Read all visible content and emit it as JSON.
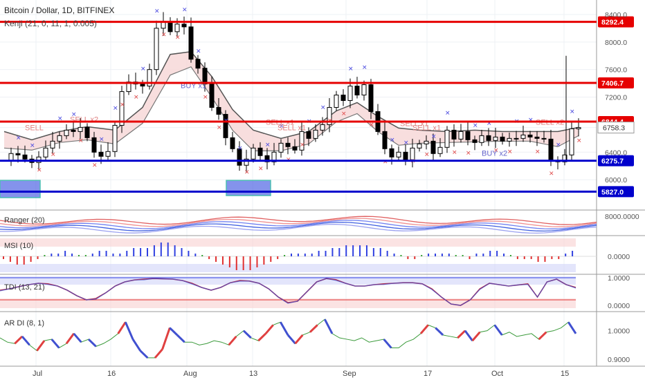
{
  "header": {
    "title": "Bitcoin / Dollar, 1D, BITFINEX",
    "indicator": "Kenji (21, 0, 11, 1, 0.005)"
  },
  "chart_data": {
    "type": "candlestick",
    "x_labels": [
      "Jul",
      "16",
      "Aug",
      "13",
      "Sep",
      "17",
      "Oct",
      "15"
    ],
    "price_axis": {
      "ticks": [
        8400.0,
        8000.0,
        7600.0,
        7200.0,
        6758.3,
        6400.0,
        6000.0
      ],
      "range": [
        5600,
        8550
      ]
    },
    "levels": [
      {
        "value": 8292.4,
        "label": "8292.4",
        "color": "#e60000"
      },
      {
        "value": 7406.7,
        "label": "7406.7",
        "color": "#e60000"
      },
      {
        "value": 6844.4,
        "label": "6844.4",
        "color": "#e60000"
      },
      {
        "value": 6275.7,
        "label": "6275.7",
        "color": "#0000cc"
      },
      {
        "value": 5827.0,
        "label": "5827.0",
        "color": "#0000cc"
      }
    ],
    "price_label": "6758.3",
    "close_points": [
      [
        0,
        6280
      ],
      [
        10,
        6380
      ],
      [
        20,
        6360
      ],
      [
        30,
        6300
      ],
      [
        40,
        6250
      ],
      [
        50,
        6330
      ],
      [
        60,
        6460
      ],
      [
        70,
        6560
      ],
      [
        80,
        6640
      ],
      [
        90,
        6720
      ],
      [
        100,
        6700
      ],
      [
        110,
        6760
      ],
      [
        120,
        6610
      ],
      [
        130,
        6400
      ],
      [
        140,
        6340
      ],
      [
        150,
        6410
      ],
      [
        160,
        6790
      ],
      [
        170,
        7280
      ],
      [
        180,
        7420
      ],
      [
        190,
        7390
      ],
      [
        200,
        7360
      ],
      [
        210,
        7600
      ],
      [
        220,
        8200
      ],
      [
        230,
        8300
      ],
      [
        240,
        8150
      ],
      [
        250,
        8260
      ],
      [
        260,
        8220
      ],
      [
        270,
        7750
      ],
      [
        280,
        7620
      ],
      [
        290,
        7390
      ],
      [
        300,
        7050
      ],
      [
        310,
        6950
      ],
      [
        320,
        6610
      ],
      [
        330,
        6450
      ],
      [
        340,
        6210
      ],
      [
        350,
        6300
      ],
      [
        360,
        6460
      ],
      [
        370,
        6350
      ],
      [
        380,
        6260
      ],
      [
        390,
        6400
      ],
      [
        400,
        6530
      ],
      [
        410,
        6480
      ],
      [
        420,
        6430
      ],
      [
        430,
        6700
      ],
      [
        440,
        6600
      ],
      [
        450,
        6720
      ],
      [
        460,
        6800
      ],
      [
        470,
        7050
      ],
      [
        480,
        7230
      ],
      [
        490,
        7150
      ],
      [
        500,
        7360
      ],
      [
        510,
        7230
      ],
      [
        520,
        7380
      ],
      [
        530,
        6990
      ],
      [
        540,
        6700
      ],
      [
        550,
        6450
      ],
      [
        560,
        6330
      ],
      [
        570,
        6400
      ],
      [
        580,
        6290
      ],
      [
        590,
        6460
      ],
      [
        600,
        6520
      ],
      [
        610,
        6560
      ],
      [
        620,
        6380
      ],
      [
        630,
        6470
      ],
      [
        640,
        6720
      ],
      [
        650,
        6590
      ],
      [
        660,
        6700
      ],
      [
        670,
        6580
      ],
      [
        680,
        6540
      ],
      [
        690,
        6640
      ],
      [
        700,
        6570
      ],
      [
        710,
        6620
      ],
      [
        720,
        6560
      ],
      [
        730,
        6600
      ],
      [
        740,
        6600
      ],
      [
        750,
        6650
      ],
      [
        760,
        6620
      ],
      [
        770,
        6600
      ],
      [
        780,
        6590
      ],
      [
        790,
        6280
      ],
      [
        800,
        6260
      ],
      [
        810,
        6360
      ],
      [
        820,
        6740
      ],
      [
        830,
        6758
      ]
    ],
    "spike": {
      "x": 818,
      "value": 7800
    },
    "band_upper": [
      [
        0,
        6700
      ],
      [
        40,
        6580
      ],
      [
        80,
        6700
      ],
      [
        120,
        6770
      ],
      [
        160,
        6720
      ],
      [
        200,
        7050
      ],
      [
        240,
        7820
      ],
      [
        270,
        7860
      ],
      [
        300,
        7500
      ],
      [
        330,
        7020
      ],
      [
        360,
        6720
      ],
      [
        400,
        6600
      ],
      [
        440,
        6700
      ],
      [
        480,
        7000
      ],
      [
        510,
        7120
      ],
      [
        540,
        6920
      ],
      [
        570,
        6750
      ],
      [
        600,
        6720
      ],
      [
        640,
        6700
      ],
      [
        680,
        6720
      ],
      [
        720,
        6700
      ],
      [
        760,
        6700
      ],
      [
        800,
        6700
      ],
      [
        830,
        6760
      ]
    ],
    "band_lower": [
      [
        0,
        6460
      ],
      [
        40,
        6430
      ],
      [
        80,
        6540
      ],
      [
        120,
        6580
      ],
      [
        160,
        6520
      ],
      [
        200,
        6820
      ],
      [
        240,
        7520
      ],
      [
        270,
        7640
      ],
      [
        300,
        7200
      ],
      [
        330,
        6720
      ],
      [
        360,
        6420
      ],
      [
        400,
        6420
      ],
      [
        440,
        6520
      ],
      [
        480,
        6840
      ],
      [
        510,
        6960
      ],
      [
        540,
        6700
      ],
      [
        570,
        6500
      ],
      [
        600,
        6530
      ],
      [
        640,
        6540
      ],
      [
        680,
        6550
      ],
      [
        720,
        6560
      ],
      [
        760,
        6560
      ],
      [
        800,
        6480
      ],
      [
        830,
        6640
      ]
    ],
    "signals": [
      {
        "x": 30,
        "value": 6720,
        "text": "SELL"
      },
      {
        "x": 95,
        "value": 6840,
        "text": "SELL x2"
      },
      {
        "x": 255,
        "value": 7330,
        "text": "BUY x1"
      },
      {
        "x": 378,
        "value": 6800,
        "text": "SELL x1"
      },
      {
        "x": 395,
        "value": 6720,
        "text": "SELL x1"
      },
      {
        "x": 572,
        "value": 6780,
        "text": "SELL x1"
      },
      {
        "x": 590,
        "value": 6720,
        "text": "SELL x1"
      },
      {
        "x": 690,
        "value": 6350,
        "text": "BUY x2"
      },
      {
        "x": 768,
        "value": 6800,
        "text": "SELL x2"
      }
    ],
    "panels": [
      {
        "name": "Ranger (20)",
        "value_label": "8000.0000"
      },
      {
        "name": "MSI (10)",
        "value_label": "0.0000"
      },
      {
        "name": "TDI (13, 21)",
        "value_labels": [
          "1.0000",
          "0.0000"
        ]
      },
      {
        "name": "AR DI (8, 1)",
        "value_labels": [
          "1.0000",
          "0.9000"
        ]
      }
    ],
    "msi_values": [
      -1,
      -2,
      -3,
      -3,
      -2,
      -1,
      0,
      1,
      1,
      2,
      1,
      0,
      0,
      1,
      2,
      2,
      1,
      1,
      2,
      3,
      3,
      3,
      4,
      5,
      5,
      4,
      3,
      2,
      1,
      0,
      -1,
      -2,
      -3,
      -4,
      -5,
      -5,
      -5,
      -4,
      -3,
      -2,
      -1,
      0,
      1,
      1,
      1,
      1,
      2,
      2,
      3,
      3,
      4,
      4,
      4,
      4,
      3,
      3,
      2,
      1,
      0,
      -1,
      -1,
      0,
      1,
      1,
      1,
      1,
      0,
      0,
      -1,
      1,
      1,
      2,
      2,
      1,
      0,
      -1,
      -1,
      -1,
      -2,
      -2,
      -1,
      -1,
      1,
      2
    ],
    "tdi_values": [
      0.55,
      0.6,
      0.68,
      0.75,
      0.8,
      0.78,
      0.7,
      0.55,
      0.35,
      0.2,
      0.25,
      0.45,
      0.7,
      0.85,
      0.92,
      0.95,
      0.97,
      0.96,
      0.95,
      0.9,
      0.8,
      0.65,
      0.55,
      0.65,
      0.82,
      0.9,
      0.88,
      0.8,
      0.6,
      0.3,
      0.1,
      0.15,
      0.5,
      0.85,
      0.97,
      0.93,
      0.8,
      0.7,
      0.7,
      0.75,
      0.78,
      0.8,
      0.82,
      0.82,
      0.78,
      0.6,
      0.3,
      0.05,
      0.0,
      0.2,
      0.6,
      0.8,
      0.75,
      0.7,
      0.74,
      0.78,
      0.3,
      0.85,
      0.95,
      0.75,
      0.65
    ],
    "ardi_values": [
      0.975,
      0.96,
      0.955,
      0.98,
      0.95,
      0.93,
      0.965,
      0.97,
      0.94,
      0.955,
      0.99,
      0.96,
      0.97,
      0.945,
      0.955,
      0.97,
      0.99,
      1.03,
      0.97,
      0.93,
      0.905,
      0.905,
      0.935,
      1.01,
      0.985,
      0.96,
      0.96,
      0.95,
      0.955,
      0.965,
      0.96,
      0.95,
      0.98,
      1.0,
      0.975,
      0.965,
      0.99,
      1.02,
      1.03,
      0.985,
      0.955,
      0.985,
      0.995,
      1.02,
      1.04,
      0.99,
      0.975,
      0.97,
      0.965,
      0.975,
      0.96,
      0.965,
      0.97,
      0.94,
      0.94,
      0.96,
      0.97,
      0.99,
      1.02,
      1.01,
      0.985,
      0.98,
      0.975,
      1.0,
      0.965,
      0.995,
      1.0,
      1.02,
      0.985,
      0.995,
      0.98,
      0.985,
      0.99,
      0.97,
      0.995,
      1.0,
      1.01,
      1.03,
      0.99
    ]
  },
  "colors": {
    "red_line": "#e60000",
    "blue_line": "#0000cc",
    "signal_text": "#e08080",
    "buy_text": "#6666cc",
    "sell_marker": "#e05050",
    "buy_marker": "#5050e0",
    "band_up": "#ccccf0",
    "band_down": "#f6d6d6"
  }
}
